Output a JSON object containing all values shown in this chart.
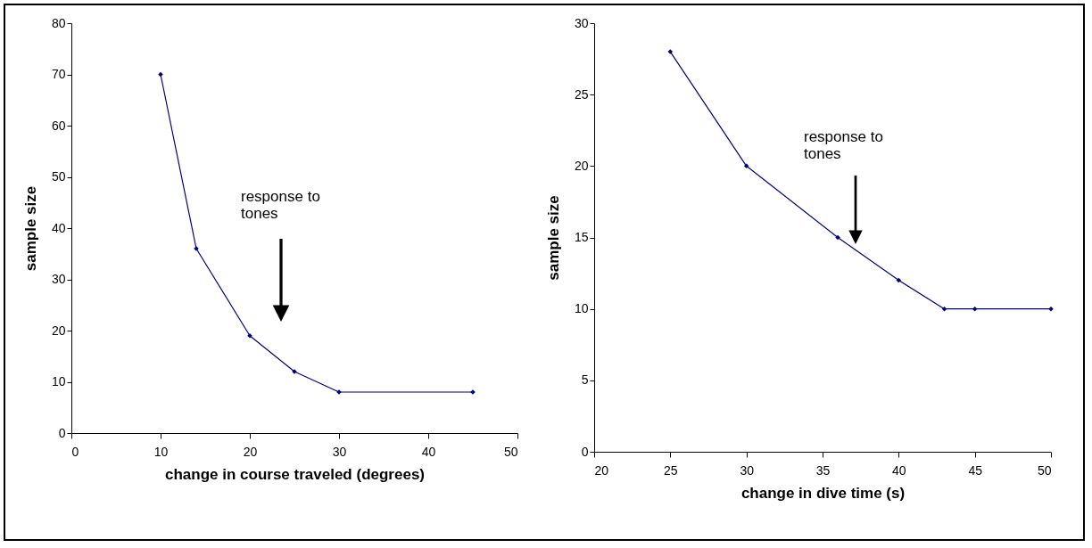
{
  "chart_data": [
    {
      "type": "line",
      "xlabel": "change in course traveled (degrees)",
      "ylabel": "sample size",
      "x": [
        10,
        14,
        20,
        25,
        30,
        45
      ],
      "values": [
        70,
        36,
        19,
        12,
        8,
        8
      ],
      "color": "#000080",
      "marker": "diamond",
      "xlim": [
        0,
        50
      ],
      "xticks": [
        0,
        10,
        20,
        30,
        40,
        50
      ],
      "ylim": [
        0,
        80
      ],
      "yticks": [
        0,
        10,
        20,
        30,
        40,
        50,
        60,
        70,
        80
      ],
      "annotations": [
        "response to\ntones"
      ]
    },
    {
      "type": "line",
      "xlabel": "change in dive time (s)",
      "ylabel": "sample size",
      "x": [
        25,
        30,
        36,
        40,
        43,
        45,
        50
      ],
      "values": [
        28,
        20,
        15,
        12,
        10,
        10,
        10
      ],
      "color": "#000080",
      "marker": "diamond",
      "xlim": [
        20,
        50
      ],
      "xticks": [
        20,
        25,
        30,
        35,
        40,
        45,
        50
      ],
      "ylim": [
        0,
        30
      ],
      "yticks": [
        0,
        5,
        10,
        15,
        20,
        25,
        30
      ],
      "annotations": [
        "response to\ntones"
      ]
    }
  ]
}
